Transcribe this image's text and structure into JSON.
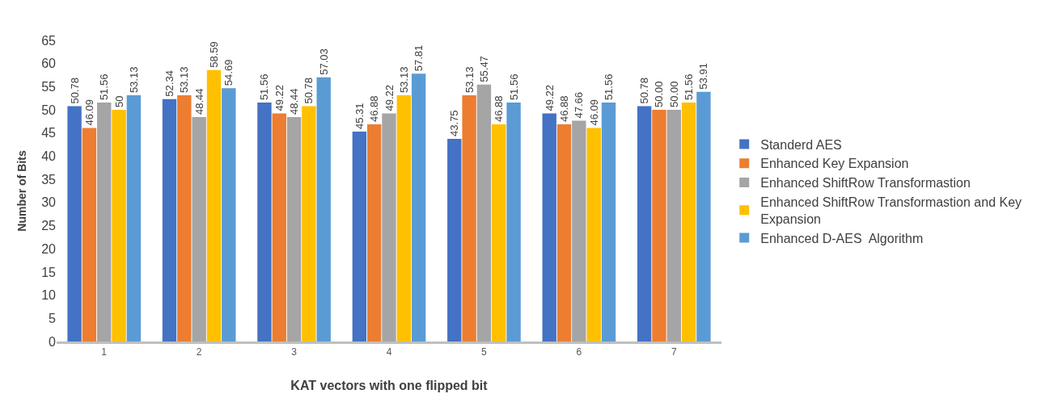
{
  "chart_data": {
    "type": "bar",
    "xlabel": "KAT vectors with one flipped bit",
    "ylabel": "Number of Bits",
    "categories": [
      "1",
      "2",
      "3",
      "4",
      "5",
      "6",
      "7"
    ],
    "series": [
      {
        "name": "Standerd AES",
        "color": "#4472c4",
        "values": [
          50.78,
          52.34,
          51.56,
          45.31,
          43.75,
          49.22,
          50.78
        ],
        "value_labels": [
          "50.78",
          "52.34",
          "51.56",
          "45.31",
          "43.75",
          "49.22",
          "50.78"
        ]
      },
      {
        "name": "Enhanced Key Expansion",
        "color": "#ed7d31",
        "values": [
          46.09,
          53.13,
          49.22,
          46.88,
          53.13,
          46.88,
          50.0
        ],
        "value_labels": [
          "46.09",
          "53.13",
          "49.22",
          "46.88",
          "53.13",
          "46.88",
          "50.00"
        ]
      },
      {
        "name": "Enhanced ShiftRow Transformastion",
        "color": "#a5a5a5",
        "values": [
          51.56,
          48.44,
          48.44,
          49.22,
          55.47,
          47.66,
          50.0
        ],
        "value_labels": [
          "51.56",
          "48.44",
          "48.44",
          "49.22",
          "55.47",
          "47.66",
          "50.00"
        ]
      },
      {
        "name": "Enhanced ShiftRow Transformastion and Key Expansion",
        "color": "#ffc000",
        "values": [
          50,
          58.59,
          50.78,
          53.13,
          46.88,
          46.09,
          51.56
        ],
        "value_labels": [
          "50",
          "58.59",
          "50.78",
          "53.13",
          "46.88",
          "46.09",
          "51.56"
        ]
      },
      {
        "name": "Enhanced D-AES  Algorithm",
        "color": "#5b9bd5",
        "values": [
          53.13,
          54.69,
          57.03,
          57.81,
          51.56,
          51.56,
          53.91
        ],
        "value_labels": [
          "53.13",
          "54.69",
          "57.03",
          "57.81",
          "51.56",
          "51.56",
          "53.91"
        ]
      }
    ],
    "ylim": [
      0,
      65
    ],
    "yticks": [
      0,
      5,
      10,
      15,
      20,
      25,
      30,
      35,
      40,
      45,
      50,
      55,
      60,
      65
    ],
    "grid": false,
    "legend": "right"
  }
}
